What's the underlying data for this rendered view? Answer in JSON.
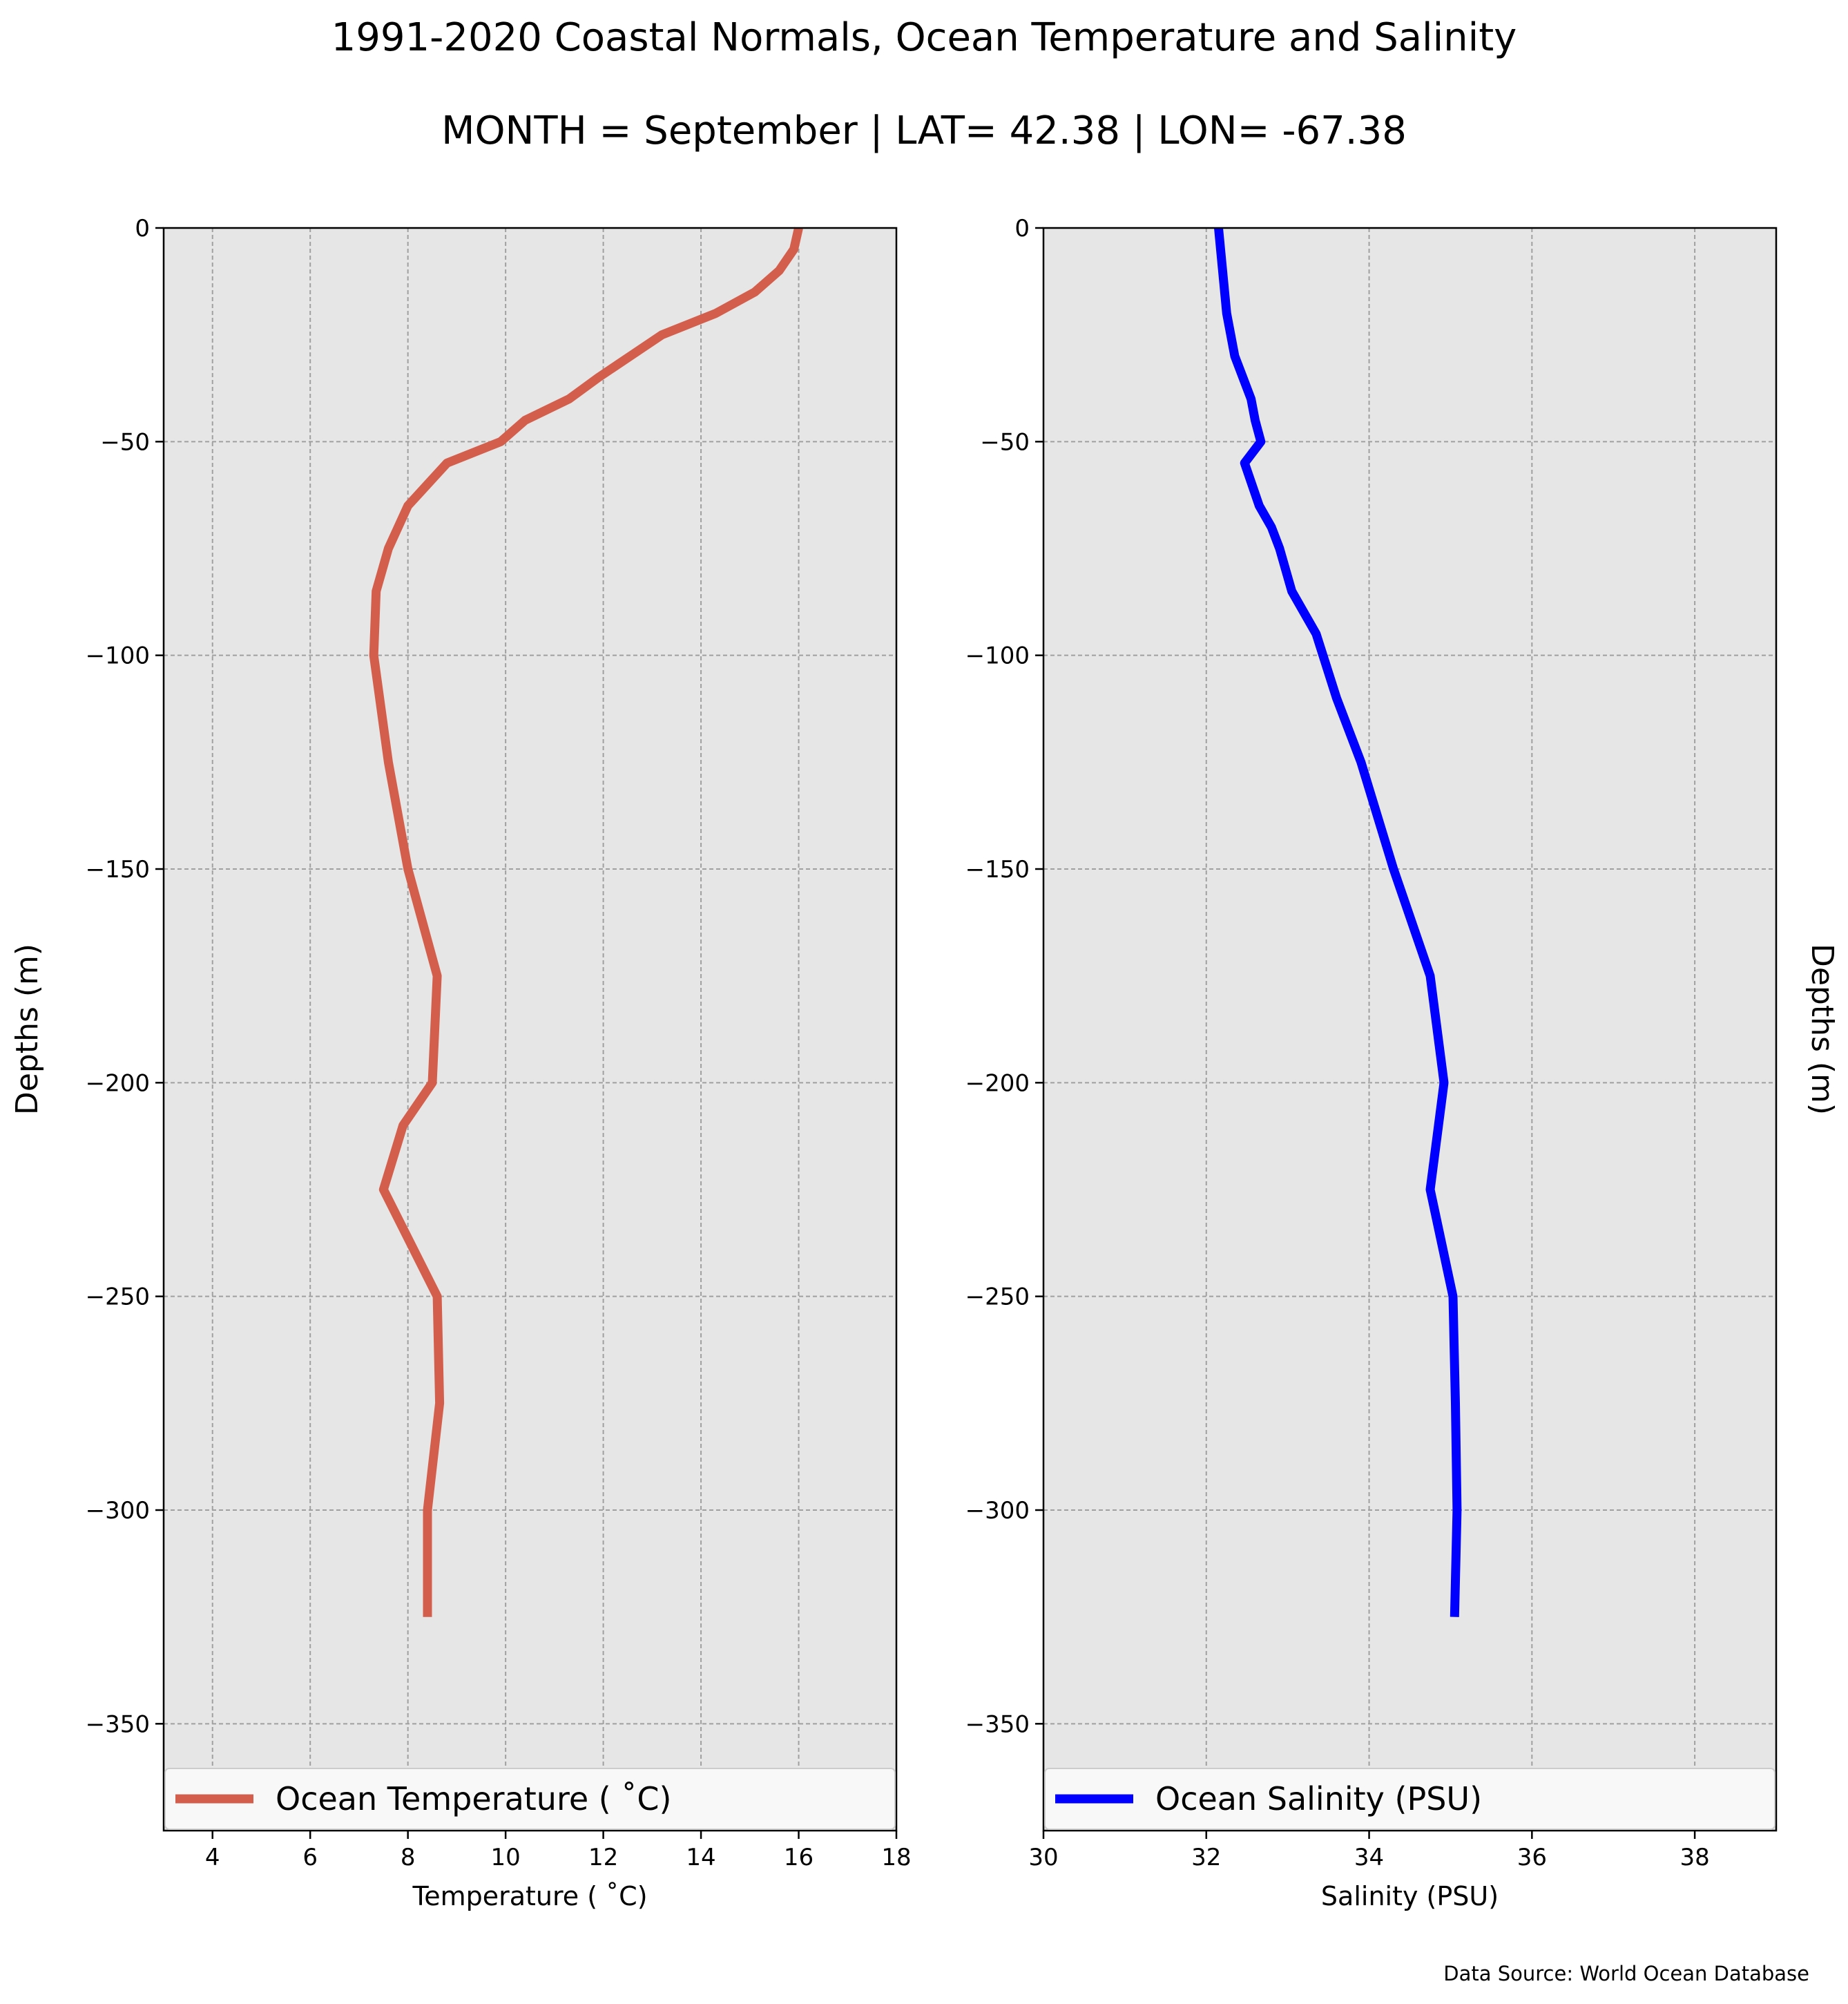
{
  "figure": {
    "title_line1": "1991-2020 Coastal Normals, Ocean Temperature and Salinity",
    "title_line2": "MONTH = September | LAT= 42.38 | LON= -67.38",
    "source": "Data Source: World Ocean Database",
    "background": "#ffffff",
    "plot_background": "#e6e6e6"
  },
  "chart_data": [
    {
      "type": "line",
      "xlabel": "Temperature ($^\\circ$C)",
      "xlabel_display": "Temperature ( ˚C)",
      "ylabel": "Depths (m)",
      "xlim": [
        3,
        18
      ],
      "ylim": [
        -375,
        0
      ],
      "xticks": [
        4,
        6,
        8,
        10,
        12,
        14,
        16,
        18
      ],
      "xtick_labels": [
        "4",
        "6",
        "8",
        "10",
        "12",
        "14",
        "16",
        "18"
      ],
      "yticks": [
        0,
        -50,
        -100,
        -150,
        -200,
        -250,
        -300,
        -350
      ],
      "ytick_labels": [
        "0",
        "−50",
        "−100",
        "−150",
        "−200",
        "−250",
        "−300",
        "−350"
      ],
      "grid": true,
      "legend_position": "lower center",
      "series": [
        {
          "name": "Ocean Temperature ( ˚C)",
          "color": "#d45e4c",
          "x": [
            16.0,
            15.9,
            15.6,
            15.1,
            14.3,
            13.2,
            11.9,
            11.3,
            10.4,
            9.9,
            8.8,
            8.4,
            8.0,
            7.6,
            7.35,
            7.3,
            7.6,
            8.0,
            8.6,
            8.5,
            7.9,
            7.5,
            8.6,
            8.65,
            8.4,
            8.4
          ],
          "y": [
            0,
            -5,
            -10,
            -15,
            -20,
            -25,
            -35,
            -40,
            -45,
            -50,
            -55,
            -60,
            -65,
            -75,
            -85,
            -100,
            -125,
            -150,
            -175,
            -200,
            -210,
            -225,
            -250,
            -275,
            -300,
            -325
          ]
        }
      ]
    },
    {
      "type": "line",
      "xlabel": "Salinity (PSU)",
      "ylabel": "Depths (m)",
      "xlim": [
        30,
        39
      ],
      "ylim": [
        -375,
        0
      ],
      "xticks": [
        30,
        32,
        34,
        36,
        38
      ],
      "xtick_labels": [
        "30",
        "32",
        "34",
        "36",
        "38"
      ],
      "yticks": [
        0,
        -50,
        -100,
        -150,
        -200,
        -250,
        -300,
        -350
      ],
      "ytick_labels": [
        "0",
        "−50",
        "−100",
        "−150",
        "−200",
        "−250",
        "−300",
        "−350"
      ],
      "grid": true,
      "legend_position": "lower center",
      "series": [
        {
          "name": "Ocean Salinity (PSU)",
          "color": "#0000ff",
          "x": [
            32.15,
            32.2,
            32.25,
            32.35,
            32.45,
            32.55,
            32.6,
            32.67,
            32.47,
            32.65,
            32.8,
            32.9,
            33.05,
            33.35,
            33.6,
            33.9,
            34.3,
            34.75,
            34.92,
            34.75,
            35.03,
            35.06,
            35.08,
            35.05
          ],
          "y": [
            0,
            -10,
            -20,
            -30,
            -35,
            -40,
            -45,
            -50,
            -55,
            -65,
            -70,
            -75,
            -85,
            -95,
            -110,
            -125,
            -150,
            -175,
            -200,
            -225,
            -250,
            -275,
            -300,
            -325
          ]
        }
      ]
    }
  ]
}
